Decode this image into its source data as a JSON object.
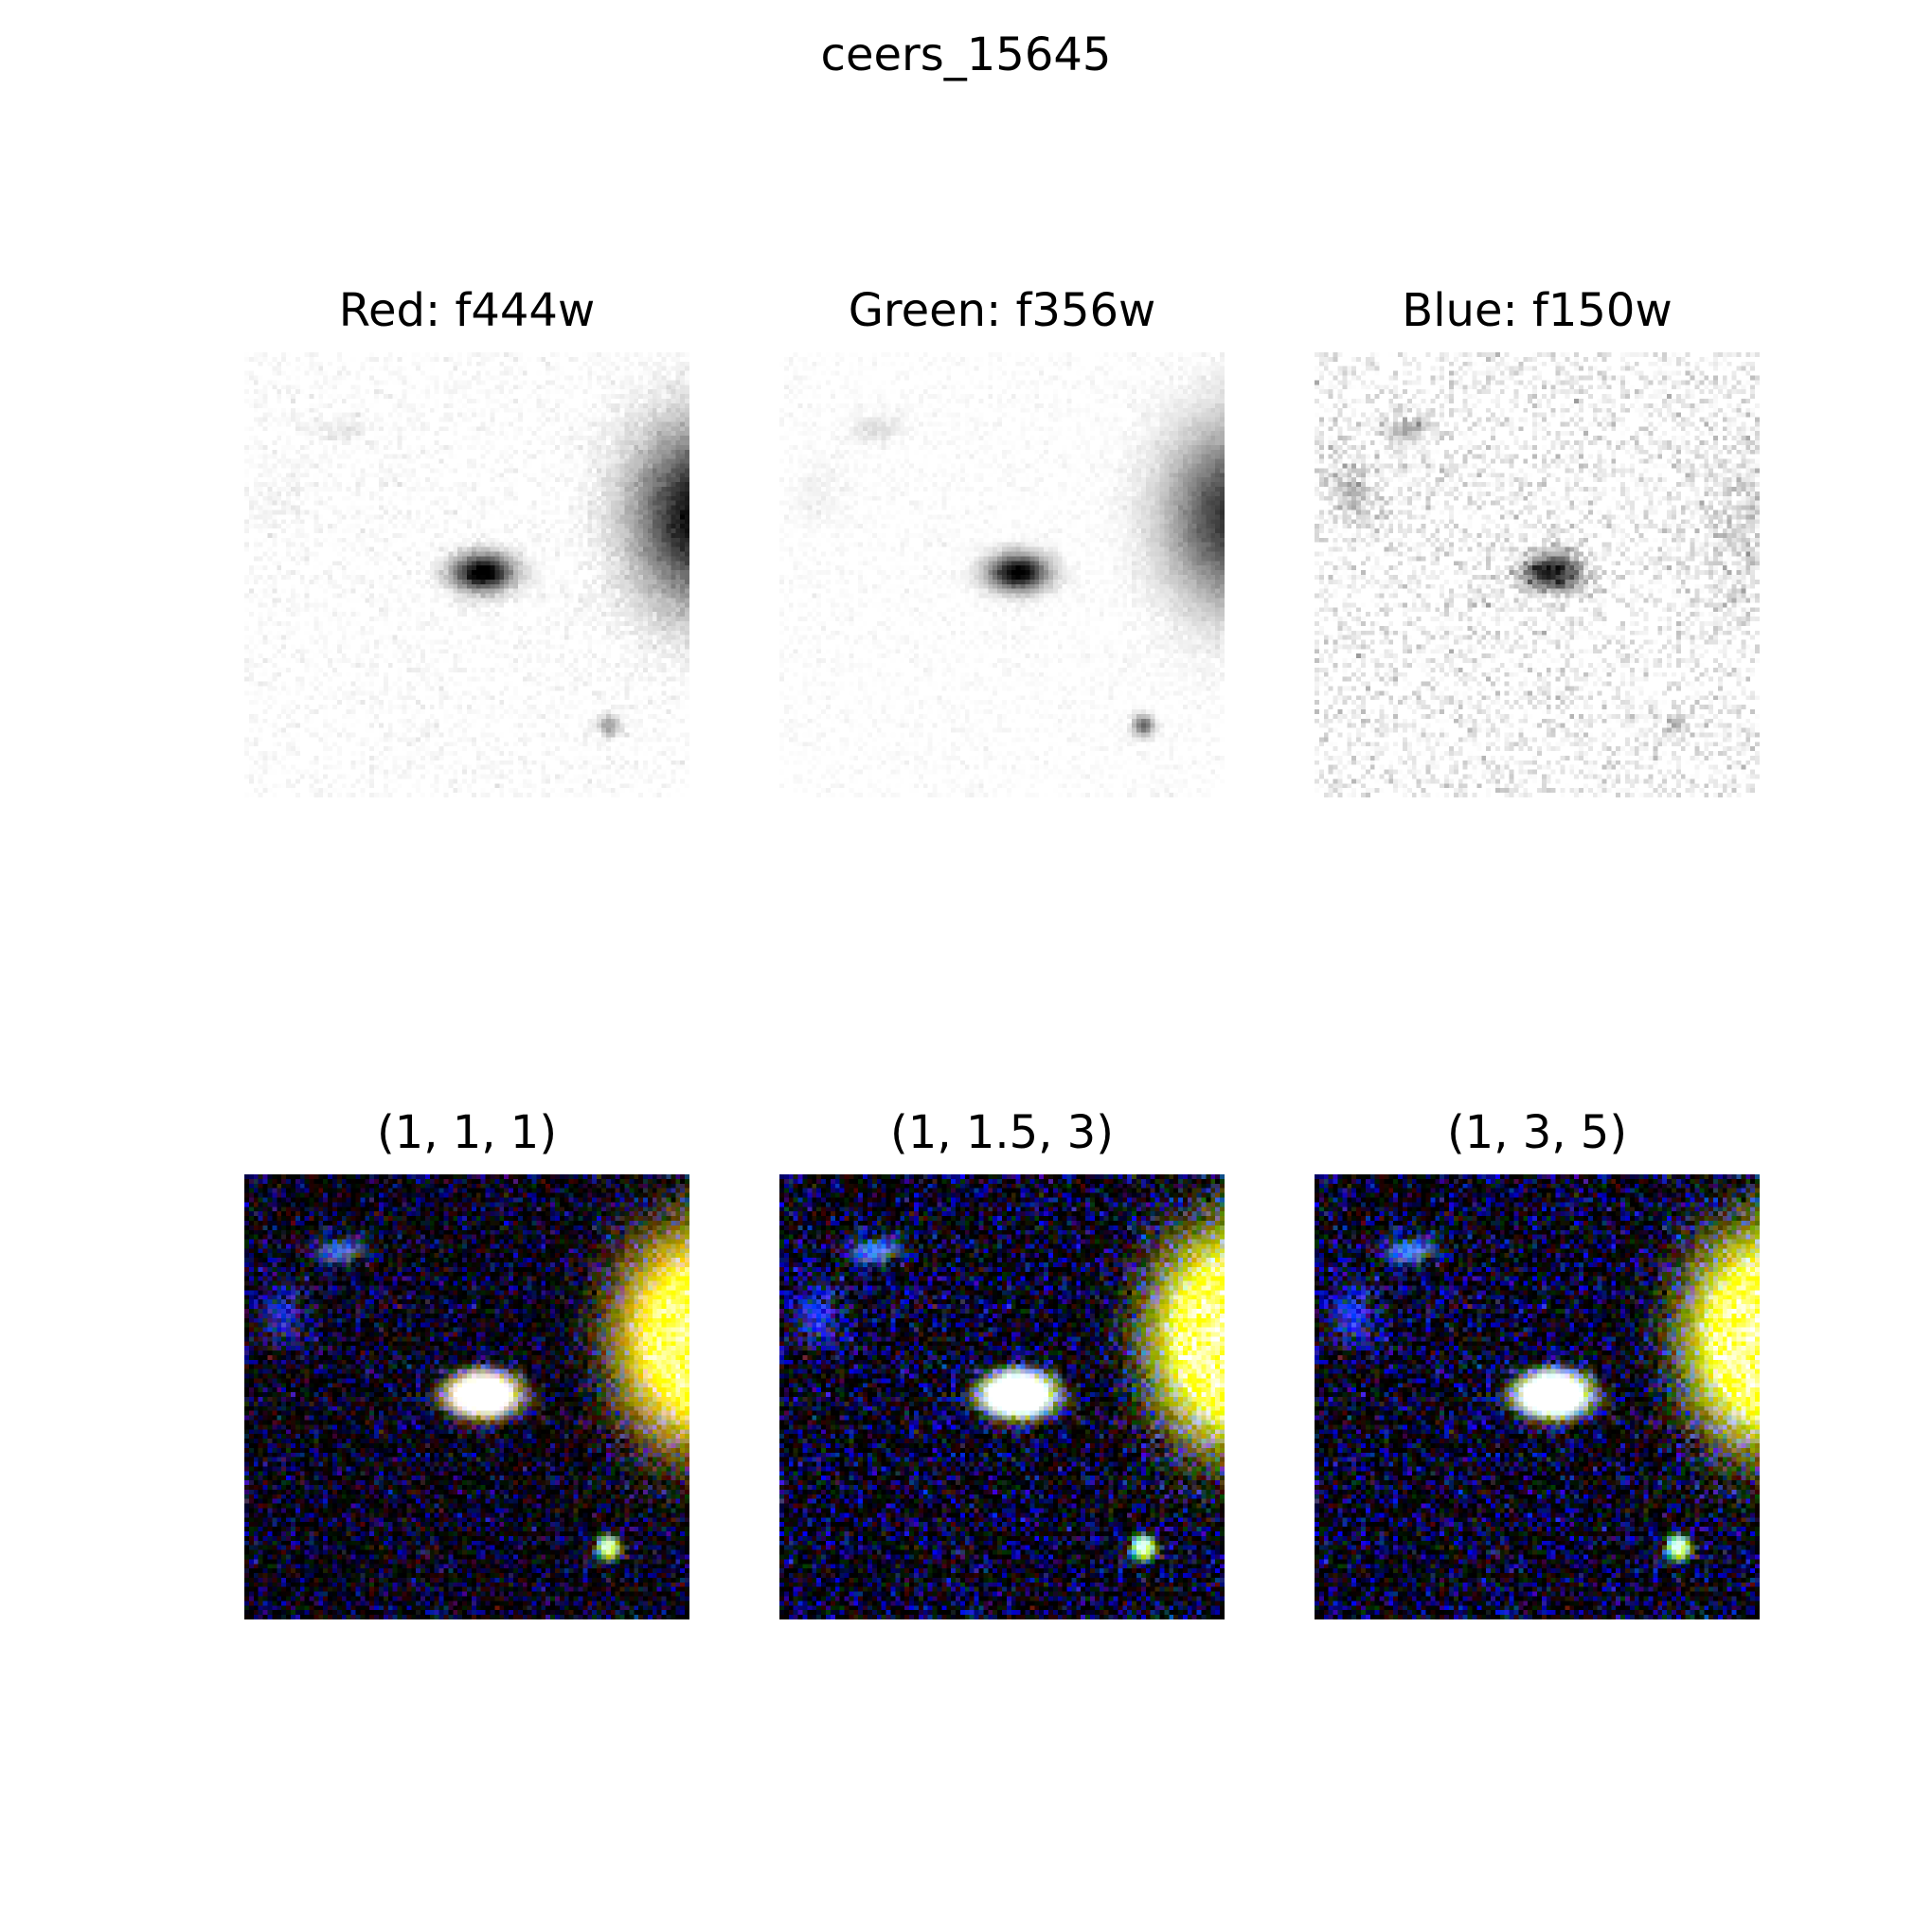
{
  "figure": {
    "title": "ceers_15645",
    "filter_panels": [
      {
        "title": "Red: f444w",
        "channel": "red"
      },
      {
        "title": "Green: f356w",
        "channel": "green"
      },
      {
        "title": "Blue: f150w",
        "channel": "blue"
      }
    ],
    "composite_panels": [
      {
        "title": "(1, 1, 1)",
        "weights": [
          1,
          1,
          1
        ]
      },
      {
        "title": "(1, 1.5, 3)",
        "weights": [
          1,
          1.5,
          3
        ]
      },
      {
        "title": "(1, 3, 5)",
        "weights": [
          1,
          3,
          5
        ]
      }
    ]
  },
  "colors": {
    "background": "#ffffff",
    "grayscale_background": "#ffffff",
    "composite_background": "#000000",
    "noise_blue": "#1a1aa0",
    "bright_source_yellow": "#ffff40"
  }
}
